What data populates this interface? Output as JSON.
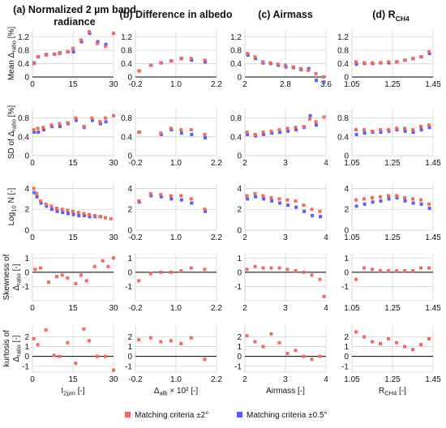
{
  "colors": {
    "red": "#f26b60",
    "blue": "#5a5ef5",
    "grid": "#d4d4d4",
    "zero_line": "#000000"
  },
  "columns": [
    {
      "title_lines": [
        "(a) Normalized 2 µm band",
        "radiance"
      ],
      "xlabel_main": "I",
      "xlabel_sub": "2µm",
      "xlabel_suffix": " [-]",
      "xlim": [
        0,
        30
      ],
      "xticks": [
        0,
        15,
        30
      ],
      "xtick_labels": [
        "0",
        "15",
        "30"
      ]
    },
    {
      "title_lines": [
        "(b) Difference in albedo"
      ],
      "xlabel_main": "Δ",
      "xlabel_sub": "alb",
      "xlabel_suffix": " × 10² [-]",
      "xlim": [
        -0.2,
        2.2
      ],
      "xticks": [
        -0.2,
        1.0,
        2.2
      ],
      "xtick_labels": [
        "-0.2",
        "1.0",
        "2.2"
      ]
    },
    {
      "title_lines": [
        "(c) Airmass"
      ],
      "xlabel_main": "Airmass [-]",
      "xlabel_sub": "",
      "xlabel_suffix": "",
      "xlim": [
        2,
        3.6
      ],
      "xticks": [
        2,
        2.8,
        3.6
      ],
      "xtick_labels": [
        "2",
        "2.8",
        "3.6"
      ],
      "xticks_lower": [
        2,
        3,
        4
      ],
      "xtick_labels_lower": [
        "2",
        "3",
        "4"
      ],
      "xlim_lower": [
        2,
        4
      ]
    },
    {
      "title_lines": [
        "(d) R"
      ],
      "title_sub": "CH4",
      "xlabel_main": "R",
      "xlabel_sub": "CH4",
      "xlabel_suffix": " [-]",
      "xlim": [
        1.05,
        1.45
      ],
      "xticks": [
        1.05,
        1.25,
        1.45
      ],
      "xtick_labels": [
        "1.05",
        "1.25",
        "1.45"
      ]
    }
  ],
  "rows": [
    {
      "ylabel_lines": [
        "Mean Δ",
        "ratio",
        " [%]"
      ],
      "ylim": [
        0,
        1.4
      ],
      "yticks": [
        0,
        0.4,
        0.8,
        1.2
      ],
      "ytick_labels": [
        "0",
        "0.4",
        "0.8",
        "1.2"
      ],
      "zero_line": false
    },
    {
      "ylabel_lines": [
        "SD of Δ",
        "ratio",
        " [%]"
      ],
      "ylim": [
        0,
        1.0
      ],
      "yticks": [
        0,
        0.4,
        0.8
      ],
      "ytick_labels": [
        "0",
        "0.4",
        "0.8"
      ],
      "zero_line": false
    },
    {
      "ylabel_lines": [
        "Log",
        "10",
        " N [-]"
      ],
      "ylim": [
        0,
        4.5
      ],
      "yticks": [
        0,
        2,
        4
      ],
      "ytick_labels": [
        "0",
        "2",
        "4"
      ],
      "zero_line": false
    },
    {
      "ylabel_lines": [
        "Skewness of",
        "Δ",
        "ratio",
        " [-]"
      ],
      "ylim": [
        -2,
        1.3
      ],
      "yticks": [
        -1,
        0,
        1
      ],
      "ytick_labels": [
        "-1",
        "0",
        "1"
      ],
      "zero_line": true
    },
    {
      "ylabel_lines": [
        "kurtosis of",
        "Δ",
        "ratio",
        " [-]"
      ],
      "ylim": [
        -1.6,
        3.2
      ],
      "yticks": [
        -1,
        0,
        1,
        2
      ],
      "ytick_labels": [
        "-1",
        "0",
        "1",
        "2"
      ],
      "zero_line": true
    }
  ],
  "legend": [
    {
      "label": "Matching criteria ±2°",
      "color": "#f26b60"
    },
    {
      "label": "Matching criteria ±0.5°",
      "color": "#5a5ef5"
    }
  ],
  "chart_data": {
    "type": "scatter",
    "series": [
      {
        "name": "Matching criteria ±2°",
        "color": "#f26b60"
      },
      {
        "name": "Matching criteria ±0.5°",
        "color": "#5a5ef5"
      }
    ],
    "panels": [
      {
        "row": 0,
        "col": 0,
        "red": {
          "x": [
            0.5,
            2,
            5,
            8,
            10,
            13,
            15,
            18,
            21,
            24,
            27,
            30
          ],
          "y": [
            0.4,
            0.6,
            0.65,
            0.68,
            0.7,
            0.75,
            0.85,
            1.1,
            1.35,
            1.0,
            0.92,
            1.3
          ]
        },
        "blue": {
          "x": [
            0.5,
            2,
            5,
            8,
            10,
            13,
            15,
            18,
            21,
            24,
            27
          ],
          "y": [
            0.42,
            0.6,
            0.67,
            0.68,
            0.72,
            0.75,
            0.75,
            1.05,
            1.3,
            1.05,
            0.97
          ]
        }
      },
      {
        "row": 0,
        "col": 1,
        "red": {
          "x": [
            -0.1,
            0.25,
            0.55,
            0.85,
            1.15,
            1.45,
            1.85
          ],
          "y": [
            0.18,
            0.35,
            0.42,
            0.48,
            0.55,
            0.55,
            0.5
          ]
        },
        "blue": {
          "x": [
            -0.1,
            0.25,
            0.55,
            0.85,
            1.15,
            1.45,
            1.85
          ],
          "y": [
            0.18,
            0.35,
            0.42,
            0.48,
            0.55,
            0.5,
            0.45
          ]
        }
      },
      {
        "row": 0,
        "col": 2,
        "red": {
          "x": [
            2.05,
            2.2,
            2.35,
            2.5,
            2.65,
            2.8,
            2.95,
            3.1,
            3.25,
            3.4,
            3.55
          ],
          "y": [
            0.7,
            0.6,
            0.45,
            0.42,
            0.38,
            0.35,
            0.3,
            0.25,
            0.2,
            0.1,
            0.0
          ]
        },
        "blue": {
          "x": [
            2.05,
            2.2,
            2.35,
            2.5,
            2.65,
            2.8,
            2.95,
            3.1,
            3.25,
            3.4,
            3.55
          ],
          "y": [
            0.65,
            0.55,
            0.42,
            0.4,
            0.35,
            0.3,
            0.28,
            0.22,
            0.25,
            -0.1,
            -0.15
          ]
        }
      },
      {
        "row": 0,
        "col": 3,
        "red": {
          "x": [
            1.07,
            1.11,
            1.15,
            1.19,
            1.23,
            1.27,
            1.31,
            1.35,
            1.39,
            1.43
          ],
          "y": [
            0.45,
            0.42,
            0.42,
            0.42,
            0.45,
            0.45,
            0.5,
            0.55,
            0.6,
            0.75
          ]
        },
        "blue": {
          "x": [
            1.07,
            1.11,
            1.15,
            1.19,
            1.23,
            1.27,
            1.31,
            1.35,
            1.39,
            1.43
          ],
          "y": [
            0.38,
            0.4,
            0.4,
            0.42,
            0.42,
            0.45,
            0.5,
            0.55,
            0.6,
            0.7
          ]
        }
      },
      {
        "row": 1,
        "col": 0,
        "red": {
          "x": [
            0.5,
            2,
            4,
            7,
            10,
            13,
            16,
            19,
            22,
            25,
            27,
            30
          ],
          "y": [
            0.55,
            0.58,
            0.6,
            0.65,
            0.68,
            0.7,
            0.8,
            0.62,
            0.8,
            0.72,
            0.8,
            0.85
          ]
        },
        "blue": {
          "x": [
            0.5,
            2,
            4,
            7,
            10,
            13,
            16,
            19,
            22,
            25,
            27
          ],
          "y": [
            0.5,
            0.5,
            0.55,
            0.62,
            0.62,
            0.68,
            0.75,
            0.6,
            0.75,
            0.68,
            0.72
          ]
        }
      },
      {
        "row": 1,
        "col": 1,
        "red": {
          "x": [
            -0.1,
            0.55,
            0.85,
            1.15,
            1.45,
            1.85
          ],
          "y": [
            0.5,
            0.48,
            0.58,
            0.55,
            0.55,
            0.45
          ]
        },
        "blue": {
          "x": [
            -0.1,
            0.55,
            0.85,
            1.15,
            1.45,
            1.85
          ],
          "y": [
            0.5,
            0.45,
            0.55,
            0.48,
            0.45,
            0.38
          ]
        }
      },
      {
        "row": 1,
        "col": 2,
        "red": {
          "x": [
            2.05,
            2.25,
            2.45,
            2.65,
            2.85,
            3.05,
            3.25,
            3.45,
            3.6,
            3.75,
            3.95
          ],
          "y": [
            0.5,
            0.45,
            0.5,
            0.52,
            0.55,
            0.58,
            0.6,
            0.62,
            0.78,
            0.72,
            0.82
          ]
        },
        "blue": {
          "x": [
            2.05,
            2.25,
            2.45,
            2.65,
            2.85,
            3.05,
            3.25,
            3.45,
            3.6,
            3.75
          ],
          "y": [
            0.45,
            0.42,
            0.45,
            0.48,
            0.5,
            0.52,
            0.55,
            0.6,
            0.85,
            0.65
          ]
        }
      },
      {
        "row": 1,
        "col": 3,
        "red": {
          "x": [
            1.07,
            1.11,
            1.15,
            1.19,
            1.23,
            1.27,
            1.31,
            1.35,
            1.39,
            1.43
          ],
          "y": [
            0.55,
            0.55,
            0.52,
            0.55,
            0.55,
            0.58,
            0.58,
            0.55,
            0.62,
            0.65
          ]
        },
        "blue": {
          "x": [
            1.07,
            1.11,
            1.15,
            1.19,
            1.23,
            1.27,
            1.31,
            1.35,
            1.39,
            1.43
          ],
          "y": [
            0.45,
            0.48,
            0.5,
            0.5,
            0.52,
            0.55,
            0.52,
            0.5,
            0.55,
            0.6
          ]
        }
      },
      {
        "row": 2,
        "col": 0,
        "red": {
          "x": [
            0.5,
            1.5,
            3,
            5,
            7,
            9,
            11,
            13,
            15,
            17,
            19,
            21,
            23,
            25,
            27,
            29
          ],
          "y": [
            4.0,
            3.5,
            2.8,
            2.5,
            2.3,
            2.1,
            2.0,
            1.9,
            1.8,
            1.7,
            1.6,
            1.5,
            1.4,
            1.3,
            1.2,
            1.1
          ]
        },
        "blue": {
          "x": [
            0.5,
            1.5,
            3,
            5,
            7,
            9,
            11,
            13,
            15,
            17,
            19,
            21,
            23,
            25
          ],
          "y": [
            3.6,
            3.2,
            2.6,
            2.3,
            2.0,
            1.8,
            1.7,
            1.6,
            1.5,
            1.4,
            1.4,
            1.3,
            1.3,
            1.3
          ]
        }
      },
      {
        "row": 2,
        "col": 1,
        "red": {
          "x": [
            -0.1,
            0.25,
            0.55,
            0.85,
            1.15,
            1.45,
            1.85
          ],
          "y": [
            2.8,
            3.5,
            3.4,
            3.3,
            3.3,
            3.0,
            2.0
          ]
        },
        "blue": {
          "x": [
            -0.1,
            0.25,
            0.55,
            0.85,
            1.15,
            1.45,
            1.85
          ],
          "y": [
            2.7,
            3.3,
            3.2,
            3.0,
            2.9,
            2.6,
            1.8
          ]
        }
      },
      {
        "row": 2,
        "col": 2,
        "red": {
          "x": [
            2.05,
            2.25,
            2.45,
            2.65,
            2.85,
            3.05,
            3.25,
            3.45,
            3.65,
            3.85
          ],
          "y": [
            3.3,
            3.5,
            3.3,
            3.1,
            3.0,
            2.9,
            2.8,
            2.4,
            2.0,
            1.8
          ]
        },
        "blue": {
          "x": [
            2.05,
            2.25,
            2.45,
            2.65,
            2.85,
            3.05,
            3.25,
            3.45,
            3.65,
            3.85
          ],
          "y": [
            3.0,
            3.2,
            3.0,
            2.8,
            2.6,
            2.4,
            2.2,
            1.8,
            1.4,
            1.3
          ]
        }
      },
      {
        "row": 2,
        "col": 3,
        "red": {
          "x": [
            1.07,
            1.11,
            1.15,
            1.19,
            1.23,
            1.27,
            1.31,
            1.35,
            1.39,
            1.43
          ],
          "y": [
            2.9,
            3.0,
            3.1,
            3.2,
            3.3,
            3.3,
            3.1,
            3.0,
            2.9,
            2.5
          ]
        },
        "blue": {
          "x": [
            1.07,
            1.11,
            1.15,
            1.19,
            1.23,
            1.27,
            1.31,
            1.35,
            1.39,
            1.43
          ],
          "y": [
            2.3,
            2.5,
            2.7,
            2.8,
            3.0,
            3.1,
            2.8,
            2.6,
            2.5,
            2.1
          ]
        }
      },
      {
        "row": 3,
        "col": 0,
        "red": {
          "x": [
            1,
            3,
            6,
            9,
            11,
            13,
            16,
            18,
            20,
            23,
            26,
            28,
            30
          ],
          "y": [
            0.2,
            0.3,
            -0.7,
            -0.3,
            -0.2,
            -0.4,
            -0.8,
            -0.2,
            -0.6,
            0.4,
            0.8,
            0.4,
            1.0
          ]
        }
      },
      {
        "row": 3,
        "col": 1,
        "red": {
          "x": [
            -0.1,
            0.25,
            0.55,
            0.85,
            1.15,
            1.45,
            1.85
          ],
          "y": [
            -0.6,
            -0.1,
            0.0,
            0.0,
            0.1,
            0.3,
            0.2
          ]
        }
      },
      {
        "row": 3,
        "col": 2,
        "red": {
          "x": [
            2.05,
            2.25,
            2.45,
            2.65,
            2.85,
            3.05,
            3.25,
            3.45,
            3.65,
            3.85,
            3.95
          ],
          "y": [
            0.2,
            0.4,
            0.3,
            0.3,
            0.3,
            0.2,
            0.1,
            0.0,
            -0.2,
            -0.5,
            -1.7
          ]
        }
      },
      {
        "row": 3,
        "col": 3,
        "red": {
          "x": [
            1.07,
            1.11,
            1.15,
            1.19,
            1.23,
            1.27,
            1.31,
            1.35,
            1.39,
            1.43
          ],
          "y": [
            -0.5,
            0.3,
            0.2,
            0.1,
            0.1,
            0.1,
            0.1,
            0.1,
            0.3,
            0.3
          ]
        }
      },
      {
        "row": 4,
        "col": 0,
        "red": {
          "x": [
            0.5,
            2,
            5,
            8,
            10,
            13,
            16,
            19,
            21,
            24,
            27,
            30
          ],
          "y": [
            1.8,
            1.2,
            2.7,
            0.1,
            0.0,
            1.4,
            -0.7,
            2.8,
            1.6,
            0.0,
            0.0,
            -1.4
          ]
        }
      },
      {
        "row": 4,
        "col": 1,
        "red": {
          "x": [
            -0.1,
            0.25,
            0.55,
            0.85,
            1.15,
            1.45,
            1.85
          ],
          "y": [
            1.7,
            1.9,
            1.5,
            1.6,
            1.3,
            1.9,
            -0.3
          ]
        }
      },
      {
        "row": 4,
        "col": 2,
        "red": {
          "x": [
            2.05,
            2.25,
            2.45,
            2.65,
            2.85,
            3.05,
            3.25,
            3.45,
            3.65,
            3.85
          ],
          "y": [
            2.1,
            1.5,
            1.0,
            2.3,
            1.4,
            0.3,
            0.6,
            0.0,
            -0.3,
            0.0
          ]
        }
      },
      {
        "row": 4,
        "col": 3,
        "red": {
          "x": [
            1.07,
            1.11,
            1.15,
            1.19,
            1.23,
            1.27,
            1.31,
            1.35,
            1.39,
            1.43
          ],
          "y": [
            2.5,
            2.0,
            1.5,
            1.3,
            1.8,
            1.4,
            1.0,
            0.7,
            1.2,
            1.8
          ]
        }
      }
    ]
  }
}
